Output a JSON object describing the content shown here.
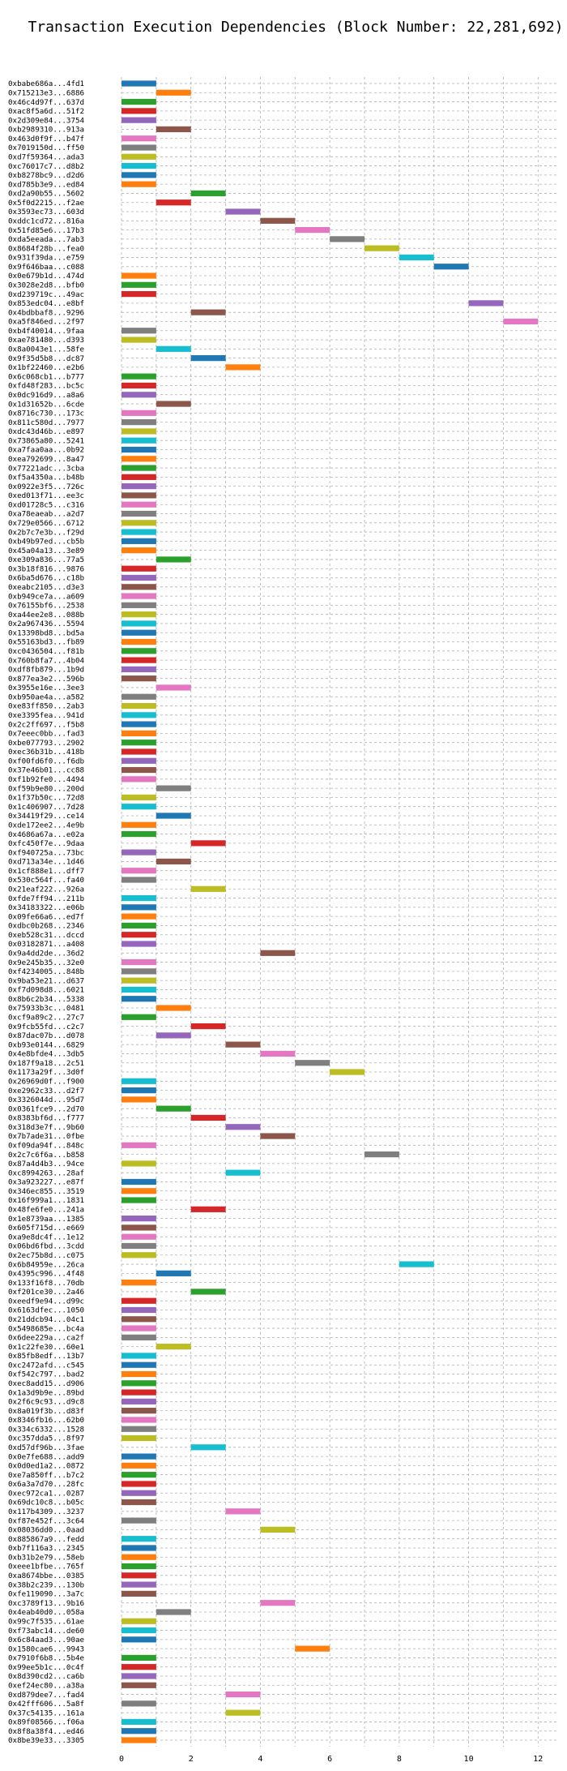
{
  "chart_data": {
    "type": "bar",
    "orientation": "horizontal",
    "title": "Transaction Execution Dependencies (Block Number: 22,281,692)",
    "xlabel": "",
    "ylabel": "",
    "xlim": [
      0,
      12.6
    ],
    "xticks": [
      0,
      2,
      4,
      6,
      8,
      10,
      12
    ],
    "grid": true,
    "palette": [
      "#1f77b4",
      "#ff7f0e",
      "#2ca02c",
      "#d62728",
      "#9467bd",
      "#8c564b",
      "#e377c2",
      "#7f7f7f",
      "#bcbd22",
      "#17becf"
    ],
    "bar_width": 1,
    "transactions": [
      {
        "label": "0xbabe686a...4fd1",
        "start": 0
      },
      {
        "label": "0x715213e3...6886",
        "start": 1
      },
      {
        "label": "0x46c4d97f...637d",
        "start": 0
      },
      {
        "label": "0xac8f5a6d...51f2",
        "start": 0
      },
      {
        "label": "0x2d309e84...3754",
        "start": 0
      },
      {
        "label": "0xb2989310...913a",
        "start": 1
      },
      {
        "label": "0x463d0f9f...b47f",
        "start": 0
      },
      {
        "label": "0x7019150d...ff50",
        "start": 0
      },
      {
        "label": "0xd7f59364...ada3",
        "start": 0
      },
      {
        "label": "0xc76017c7...d8b2",
        "start": 0
      },
      {
        "label": "0xb8278bc9...d2d6",
        "start": 0
      },
      {
        "label": "0xd785b3e9...ed84",
        "start": 0
      },
      {
        "label": "0xd2a90b55...5602",
        "start": 2
      },
      {
        "label": "0x5f0d2215...f2ae",
        "start": 1
      },
      {
        "label": "0x3593ec73...603d",
        "start": 3
      },
      {
        "label": "0xddc1cd72...816a",
        "start": 4
      },
      {
        "label": "0x51fd85e6...17b3",
        "start": 5
      },
      {
        "label": "0xda5eeada...7ab3",
        "start": 6
      },
      {
        "label": "0x8684f28b...fea0",
        "start": 7
      },
      {
        "label": "0x931f39da...e759",
        "start": 8
      },
      {
        "label": "0x9f646baa...c088",
        "start": 9
      },
      {
        "label": "0x0e679b1d...474d",
        "start": 0
      },
      {
        "label": "0x3028e2d8...bfb0",
        "start": 0
      },
      {
        "label": "0xd239719c...49ac",
        "start": 0
      },
      {
        "label": "0x853edc04...e8bf",
        "start": 10
      },
      {
        "label": "0x4bdbbaf8...9296",
        "start": 2
      },
      {
        "label": "0xa5f846ed...2f97",
        "start": 11
      },
      {
        "label": "0xb4f40014...9faa",
        "start": 0
      },
      {
        "label": "0xae781480...d393",
        "start": 0
      },
      {
        "label": "0x8a0043e1...58fe",
        "start": 1
      },
      {
        "label": "0x9f35d5b8...dc87",
        "start": 2
      },
      {
        "label": "0x1bf22460...e2b6",
        "start": 3
      },
      {
        "label": "0x6c068cb1...b777",
        "start": 0
      },
      {
        "label": "0xfd48f283...bc5c",
        "start": 0
      },
      {
        "label": "0x0dc916d9...a8a6",
        "start": 0
      },
      {
        "label": "0x1d31652b...6cde",
        "start": 1
      },
      {
        "label": "0x8716c730...173c",
        "start": 0
      },
      {
        "label": "0x811c580d...7977",
        "start": 0
      },
      {
        "label": "0xdc43d46b...e897",
        "start": 0
      },
      {
        "label": "0x73865a80...5241",
        "start": 0
      },
      {
        "label": "0xa7faa0aa...0b92",
        "start": 0
      },
      {
        "label": "0xea792699...8a47",
        "start": 0
      },
      {
        "label": "0x77221adc...3cba",
        "start": 0
      },
      {
        "label": "0xf5a4350a...b48b",
        "start": 0
      },
      {
        "label": "0x0922e3f5...726c",
        "start": 0
      },
      {
        "label": "0xed013f71...ee3c",
        "start": 0
      },
      {
        "label": "0xd01728c5...c316",
        "start": 0
      },
      {
        "label": "0xa78eaeab...a2d7",
        "start": 0
      },
      {
        "label": "0x729e0566...6712",
        "start": 0
      },
      {
        "label": "0x2b7c7e3b...f29d",
        "start": 0
      },
      {
        "label": "0xb49b97ed...cb5b",
        "start": 0
      },
      {
        "label": "0x45a04a13...3e89",
        "start": 0
      },
      {
        "label": "0xe309a836...77a5",
        "start": 1
      },
      {
        "label": "0x3b18f816...9876",
        "start": 0
      },
      {
        "label": "0x6ba5d676...c18b",
        "start": 0
      },
      {
        "label": "0xeabc2105...d3e3",
        "start": 0
      },
      {
        "label": "0xb949ce7a...a609",
        "start": 0
      },
      {
        "label": "0x76155bf6...2538",
        "start": 0
      },
      {
        "label": "0xa44ee2e8...088b",
        "start": 0
      },
      {
        "label": "0x2a967436...5594",
        "start": 0
      },
      {
        "label": "0x13398bd8...bd5a",
        "start": 0
      },
      {
        "label": "0x55163bd3...fb89",
        "start": 0
      },
      {
        "label": "0xc0436504...f81b",
        "start": 0
      },
      {
        "label": "0x760b8fa7...4b04",
        "start": 0
      },
      {
        "label": "0xdf8fb879...1b9d",
        "start": 0
      },
      {
        "label": "0x877ea3e2...596b",
        "start": 0
      },
      {
        "label": "0x3955e16e...3ee3",
        "start": 1
      },
      {
        "label": "0xb950ae4a...a582",
        "start": 0
      },
      {
        "label": "0xe83ff850...2ab3",
        "start": 0
      },
      {
        "label": "0xe3395fea...941d",
        "start": 0
      },
      {
        "label": "0x2c2ff697...f5b8",
        "start": 0
      },
      {
        "label": "0x7eeec0bb...fad3",
        "start": 0
      },
      {
        "label": "0xbe077793...2902",
        "start": 0
      },
      {
        "label": "0xec36b31b...418b",
        "start": 0
      },
      {
        "label": "0xf00fd6f0...f6db",
        "start": 0
      },
      {
        "label": "0x37e46b01...cc88",
        "start": 0
      },
      {
        "label": "0xf1b92fe0...4494",
        "start": 0
      },
      {
        "label": "0xf59b9e80...200d",
        "start": 1
      },
      {
        "label": "0x1f37b50c...72d8",
        "start": 0
      },
      {
        "label": "0x1c406907...7d28",
        "start": 0
      },
      {
        "label": "0x34419f29...ce14",
        "start": 1
      },
      {
        "label": "0xde172ee2...4e9b",
        "start": 0
      },
      {
        "label": "0x4686a67a...e02a",
        "start": 0
      },
      {
        "label": "0xfc450f7e...9daa",
        "start": 2
      },
      {
        "label": "0xf940725a...73bc",
        "start": 0
      },
      {
        "label": "0xd713a34e...1d46",
        "start": 1
      },
      {
        "label": "0x1cf888e1...dff7",
        "start": 0
      },
      {
        "label": "0x530c564f...fa40",
        "start": 0
      },
      {
        "label": "0x21eaf222...926a",
        "start": 2
      },
      {
        "label": "0xfde7ff94...211b",
        "start": 0
      },
      {
        "label": "0x34183322...e06b",
        "start": 0
      },
      {
        "label": "0x09fe66a6...ed7f",
        "start": 0
      },
      {
        "label": "0xdbc0b268...2346",
        "start": 0
      },
      {
        "label": "0xeb528c31...dccd",
        "start": 0
      },
      {
        "label": "0x03182871...a408",
        "start": 0
      },
      {
        "label": "0x9a4dd2de...36d2",
        "start": 4
      },
      {
        "label": "0x9e245b35...32e0",
        "start": 0
      },
      {
        "label": "0xf4234005...848b",
        "start": 0
      },
      {
        "label": "0x9ba53e21...d637",
        "start": 0
      },
      {
        "label": "0xf7d098d8...6021",
        "start": 0
      },
      {
        "label": "0x8b6c2b34...5338",
        "start": 0
      },
      {
        "label": "0x75933b3c...0481",
        "start": 1
      },
      {
        "label": "0xcf9a89c2...27c7",
        "start": 0
      },
      {
        "label": "0x9fcb55fd...c2c7",
        "start": 2
      },
      {
        "label": "0x87dac07b...d078",
        "start": 1
      },
      {
        "label": "0xb93e0144...6829",
        "start": 3
      },
      {
        "label": "0x4e8bfde4...3db5",
        "start": 4
      },
      {
        "label": "0x187f9a18...2c51",
        "start": 5
      },
      {
        "label": "0x1173a29f...3d0f",
        "start": 6
      },
      {
        "label": "0x26969d0f...f900",
        "start": 0
      },
      {
        "label": "0xe2962c33...d2f7",
        "start": 0
      },
      {
        "label": "0x3326044d...95d7",
        "start": 0
      },
      {
        "label": "0x0361fce9...2d70",
        "start": 1
      },
      {
        "label": "0x8383bf6d...f777",
        "start": 2
      },
      {
        "label": "0x318d3e7f...9b60",
        "start": 3
      },
      {
        "label": "0x7b7ade31...0fbe",
        "start": 4
      },
      {
        "label": "0xf09da94f...848c",
        "start": 0
      },
      {
        "label": "0x2c7c6f6a...b858",
        "start": 7
      },
      {
        "label": "0x87a4d4b3...94ce",
        "start": 0
      },
      {
        "label": "0xc8994263...28af",
        "start": 3
      },
      {
        "label": "0x3a923227...e87f",
        "start": 0
      },
      {
        "label": "0x346ec855...3519",
        "start": 0
      },
      {
        "label": "0x16f999a1...1831",
        "start": 0
      },
      {
        "label": "0x48fe6fe0...241a",
        "start": 2
      },
      {
        "label": "0x1e8739aa...1385",
        "start": 0
      },
      {
        "label": "0x605f715d...e669",
        "start": 0
      },
      {
        "label": "0xa9e8dc4f...1e12",
        "start": 0
      },
      {
        "label": "0x06bd6fbd...3cdd",
        "start": 0
      },
      {
        "label": "0x2ec75b8d...c075",
        "start": 0
      },
      {
        "label": "0x6b84959e...26ca",
        "start": 8
      },
      {
        "label": "0x4395c996...4f48",
        "start": 1
      },
      {
        "label": "0x133f16f8...70db",
        "start": 0
      },
      {
        "label": "0xf201ce30...2a46",
        "start": 2
      },
      {
        "label": "0xeedf9e94...d99c",
        "start": 0
      },
      {
        "label": "0x6163dfec...1050",
        "start": 0
      },
      {
        "label": "0x21ddcb94...04c1",
        "start": 0
      },
      {
        "label": "0x5498685e...bc4a",
        "start": 0
      },
      {
        "label": "0x6dee229a...ca2f",
        "start": 0
      },
      {
        "label": "0x1c22fe30...60e1",
        "start": 1
      },
      {
        "label": "0x85fb8edf...13b7",
        "start": 0
      },
      {
        "label": "0xc2472afd...c545",
        "start": 0
      },
      {
        "label": "0xf542c797...bad2",
        "start": 0
      },
      {
        "label": "0xec8add15...d906",
        "start": 0
      },
      {
        "label": "0x1a3d9b9e...89bd",
        "start": 0
      },
      {
        "label": "0x2f6c9c93...d9c8",
        "start": 0
      },
      {
        "label": "0x8a019f3b...d83f",
        "start": 0
      },
      {
        "label": "0x8346fb16...62b0",
        "start": 0
      },
      {
        "label": "0x334c6332...1528",
        "start": 0
      },
      {
        "label": "0xc357dda5...8f97",
        "start": 0
      },
      {
        "label": "0xd57df96b...3fae",
        "start": 2
      },
      {
        "label": "0x0e7fe688...add9",
        "start": 0
      },
      {
        "label": "0x0d0ed1a2...0872",
        "start": 0
      },
      {
        "label": "0xe7a850ff...b7c2",
        "start": 0
      },
      {
        "label": "0x6a3a7d70...28fc",
        "start": 0
      },
      {
        "label": "0xec972ca1...0287",
        "start": 0
      },
      {
        "label": "0x69dc10c8...b05c",
        "start": 0
      },
      {
        "label": "0x117b4309...3237",
        "start": 3
      },
      {
        "label": "0xf87e452f...3c64",
        "start": 0
      },
      {
        "label": "0x08036dd0...0aad",
        "start": 4
      },
      {
        "label": "0x885867a9...fedd",
        "start": 0
      },
      {
        "label": "0xb7f116a3...2345",
        "start": 0
      },
      {
        "label": "0xb31b2e79...58eb",
        "start": 0
      },
      {
        "label": "0xeee1bfbe...765f",
        "start": 0
      },
      {
        "label": "0xa8674bbe...0385",
        "start": 0
      },
      {
        "label": "0x38b2c239...130b",
        "start": 0
      },
      {
        "label": "0xfe119090...3a7c",
        "start": 0
      },
      {
        "label": "0xc3789f13...9b16",
        "start": 4
      },
      {
        "label": "0x4eab40d0...058a",
        "start": 1
      },
      {
        "label": "0x99c7f535...61ae",
        "start": 0
      },
      {
        "label": "0xf73abc14...de60",
        "start": 0
      },
      {
        "label": "0x6c84aad3...90ae",
        "start": 0
      },
      {
        "label": "0x1580cae6...9943",
        "start": 5
      },
      {
        "label": "0x7910f6b8...5b4e",
        "start": 0
      },
      {
        "label": "0x99ee5b1c...0c4f",
        "start": 0
      },
      {
        "label": "0x8d390cd2...ca6b",
        "start": 0
      },
      {
        "label": "0xef24ec80...a38a",
        "start": 0
      },
      {
        "label": "0xd879dee7...fad4",
        "start": 3
      },
      {
        "label": "0x42fff606...5a8f",
        "start": 0
      },
      {
        "label": "0x37c54135...161a",
        "start": 3
      },
      {
        "label": "0x89f08566...f06a",
        "start": 0
      },
      {
        "label": "0x8f8a38f4...ed46",
        "start": 0
      },
      {
        "label": "0x8be39e33...3305",
        "start": 0
      }
    ]
  }
}
